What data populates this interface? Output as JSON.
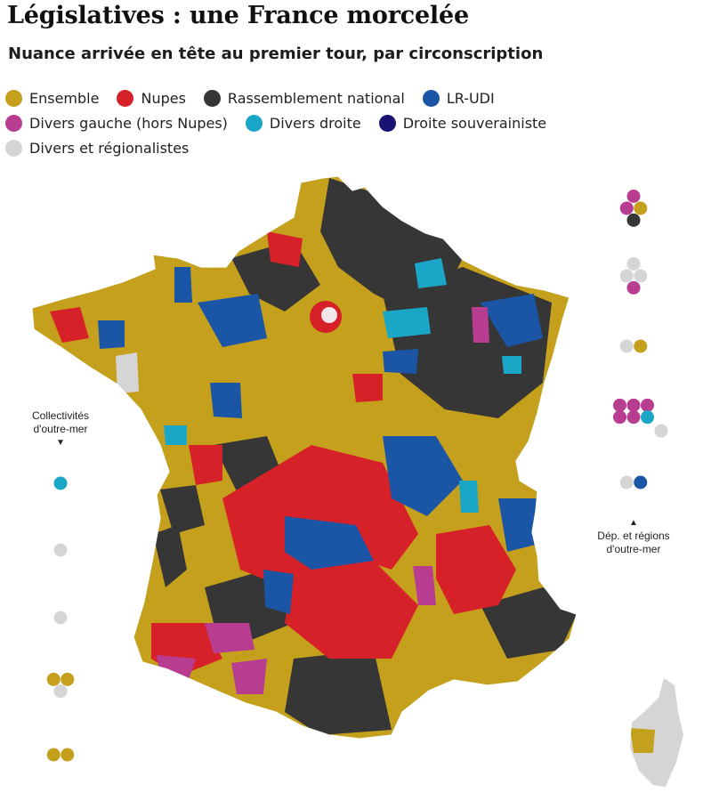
{
  "header": {
    "title": "Législatives : une France morcelée",
    "subtitle": "Nuance arrivée en tête au premier tour, par circonscription"
  },
  "legend": {
    "items": [
      {
        "label": "Ensemble",
        "color": "#c4a01c"
      },
      {
        "label": "Nupes",
        "color": "#d62128"
      },
      {
        "label": "Rassemblement national",
        "color": "#363636"
      },
      {
        "label": "LR-UDI",
        "color": "#1b56a6"
      },
      {
        "label": "Divers gauche (hors Nupes)",
        "color": "#b83d91"
      },
      {
        "label": "Divers droite",
        "color": "#1aa7c7"
      },
      {
        "label": "Droite souverainiste",
        "color": "#1a1273"
      },
      {
        "label": "Divers et régionalistes",
        "color": "#d5d5d5"
      }
    ]
  },
  "annotations": {
    "collectivites": {
      "line1": "Collectivités",
      "line2": "d'outre-mer",
      "arrow": "▼"
    },
    "dep_regions": {
      "arrow": "▲",
      "line1": "Dép. et régions",
      "line2": "d'outre-mer"
    }
  },
  "outre_mer": {
    "collectivites": [
      [
        "Divers droite"
      ],
      [
        "Divers et régionalistes"
      ],
      [
        "Divers et régionalistes"
      ],
      [
        "Ensemble",
        "Ensemble",
        "Divers et régionalistes"
      ],
      [
        "Ensemble",
        "Ensemble"
      ]
    ],
    "departements_regions": [
      [
        "Divers gauche (hors Nupes)",
        "Divers gauche (hors Nupes)",
        "Ensemble",
        "Rassemblement national"
      ],
      [
        "Divers et régionalistes",
        "Divers et régionalistes",
        "Divers et régionalistes",
        "Divers gauche (hors Nupes)"
      ],
      [
        "Divers et régionalistes",
        "Ensemble"
      ],
      [
        "Divers gauche (hors Nupes)",
        "Divers gauche (hors Nupes)",
        "Divers gauche (hors Nupes)",
        "Divers gauche (hors Nupes)",
        "Divers gauche (hors Nupes)",
        "Divers droite",
        "Divers et régionalistes"
      ],
      [
        "Divers et régionalistes",
        "LR-UDI"
      ]
    ]
  }
}
